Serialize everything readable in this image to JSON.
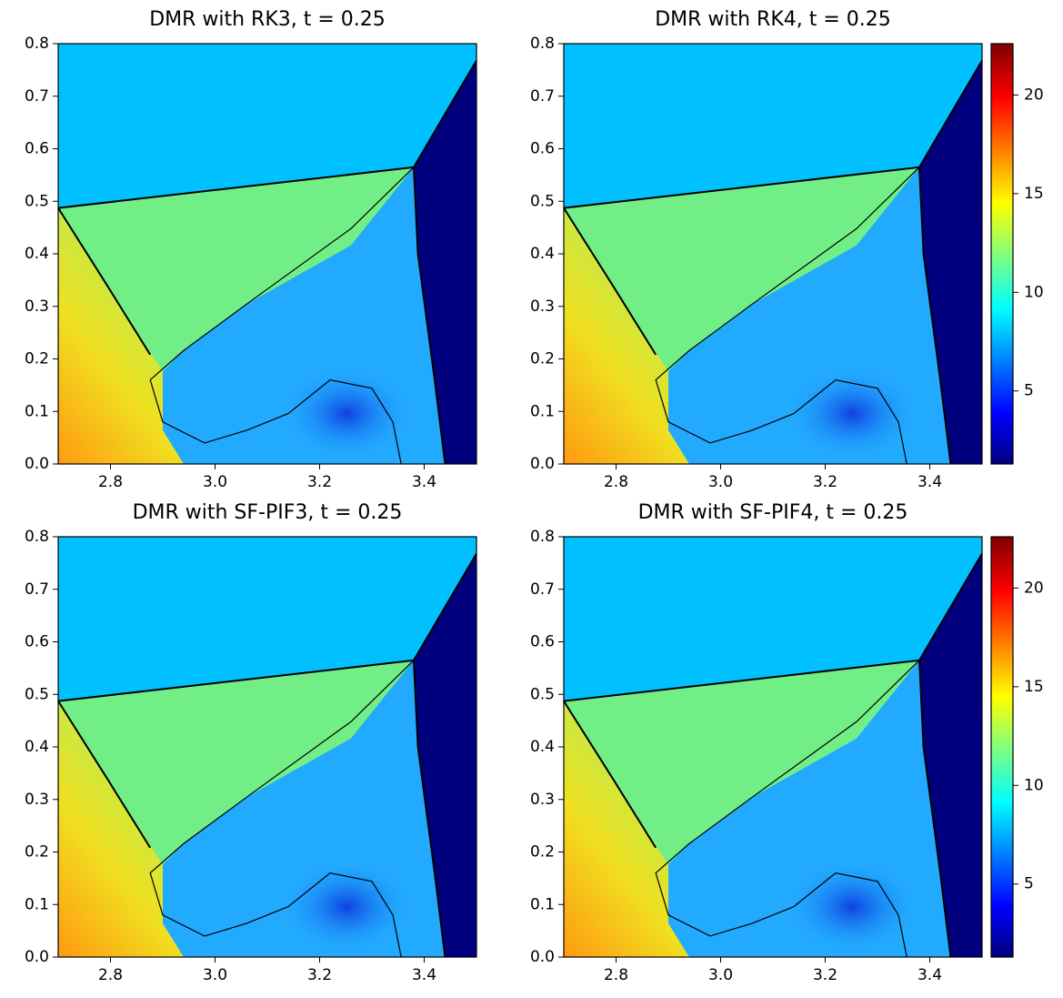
{
  "chart_data": [
    {
      "type": "contour",
      "title": "DMR with RK3, t = 0.25",
      "xlim": [
        2.7,
        3.5
      ],
      "ylim": [
        0,
        0.8
      ],
      "xticks": [
        2.8,
        {
          "value": 3.0,
          "label": "3.0"
        },
        3.2,
        3.4
      ],
      "yticks": [
        {
          "value": 0,
          "label": "0.0"
        },
        0.1,
        0.2,
        0.3,
        0.4,
        0.5,
        0.6,
        0.7,
        0.8
      ]
    },
    {
      "type": "contour",
      "title": "DMR with RK4, t = 0.25",
      "xlim": [
        2.7,
        3.5
      ],
      "ylim": [
        0,
        0.8
      ],
      "xticks": [
        2.8,
        {
          "value": 3.0,
          "label": "3.0"
        },
        3.2,
        3.4
      ],
      "yticks": [
        {
          "value": 0,
          "label": "0.0"
        },
        0.1,
        0.2,
        0.3,
        0.4,
        0.5,
        0.6,
        0.7,
        0.8
      ],
      "colorbar": {
        "lim": [
          1.3,
          22.6
        ],
        "ticks": [
          5,
          10,
          15,
          20
        ]
      }
    },
    {
      "type": "contour",
      "title": "DMR with SF-PIF3, t = 0.25",
      "xlim": [
        2.7,
        3.5
      ],
      "ylim": [
        0,
        0.8
      ],
      "xticks": [
        2.8,
        {
          "value": 3.0,
          "label": "3.0"
        },
        3.2,
        3.4
      ],
      "yticks": [
        {
          "value": 0,
          "label": "0.0"
        },
        0.1,
        0.2,
        0.3,
        0.4,
        0.5,
        0.6,
        0.7,
        0.8
      ]
    },
    {
      "type": "contour",
      "title": "DMR with SF-PIF4, t = 0.25",
      "xlim": [
        2.7,
        3.5
      ],
      "ylim": [
        0,
        0.8
      ],
      "xticks": [
        2.8,
        {
          "value": 3.0,
          "label": "3.0"
        },
        3.2,
        3.4
      ],
      "yticks": [
        {
          "value": 0,
          "label": "0.0"
        },
        0.1,
        0.2,
        0.3,
        0.4,
        0.5,
        0.6,
        0.7,
        0.8
      ],
      "colorbar": {
        "lim": [
          1.3,
          22.6
        ],
        "ticks": [
          5,
          10,
          15,
          20
        ]
      }
    }
  ]
}
